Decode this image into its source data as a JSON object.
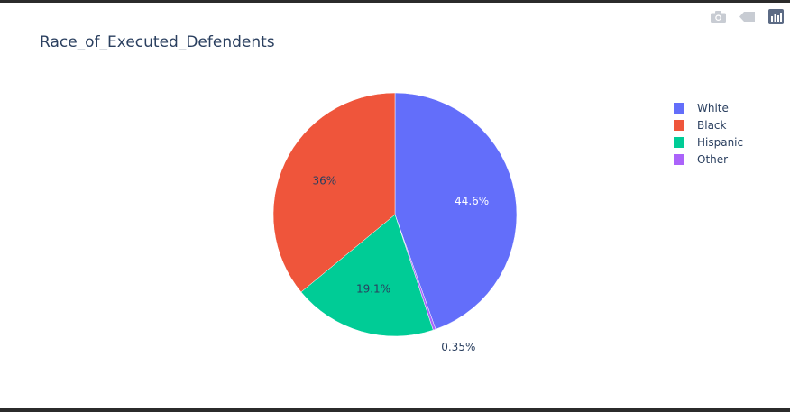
{
  "chart_data": {
    "type": "pie",
    "title": "Race_of_Executed_Defendents",
    "slices": [
      {
        "label": "White",
        "value": 44.6,
        "text": "44.6%",
        "color": "#636efa",
        "text_color": "#ffffff",
        "text_position": "inside"
      },
      {
        "label": "Other",
        "value": 0.35,
        "text": "0.35%",
        "color": "#ab63fa",
        "text_color": "#2a3f5f",
        "text_position": "outside"
      },
      {
        "label": "Hispanic",
        "value": 19.1,
        "text": "19.1%",
        "color": "#00cc96",
        "text_color": "#2a3f5f",
        "text_position": "inside"
      },
      {
        "label": "Black",
        "value": 36,
        "text": "36%",
        "color": "#ef553b",
        "text_color": "#2a3f5f",
        "text_position": "inside"
      }
    ],
    "legend": {
      "placement": "right",
      "items": [
        {
          "label": "White",
          "color": "#636efa"
        },
        {
          "label": "Black",
          "color": "#ef553b"
        },
        {
          "label": "Hispanic",
          "color": "#00cc96"
        },
        {
          "label": "Other",
          "color": "#ab63fa"
        }
      ]
    }
  },
  "modebar": {
    "icons": [
      "camera-icon",
      "autoscale-icon",
      "plotly-logo-icon"
    ]
  }
}
